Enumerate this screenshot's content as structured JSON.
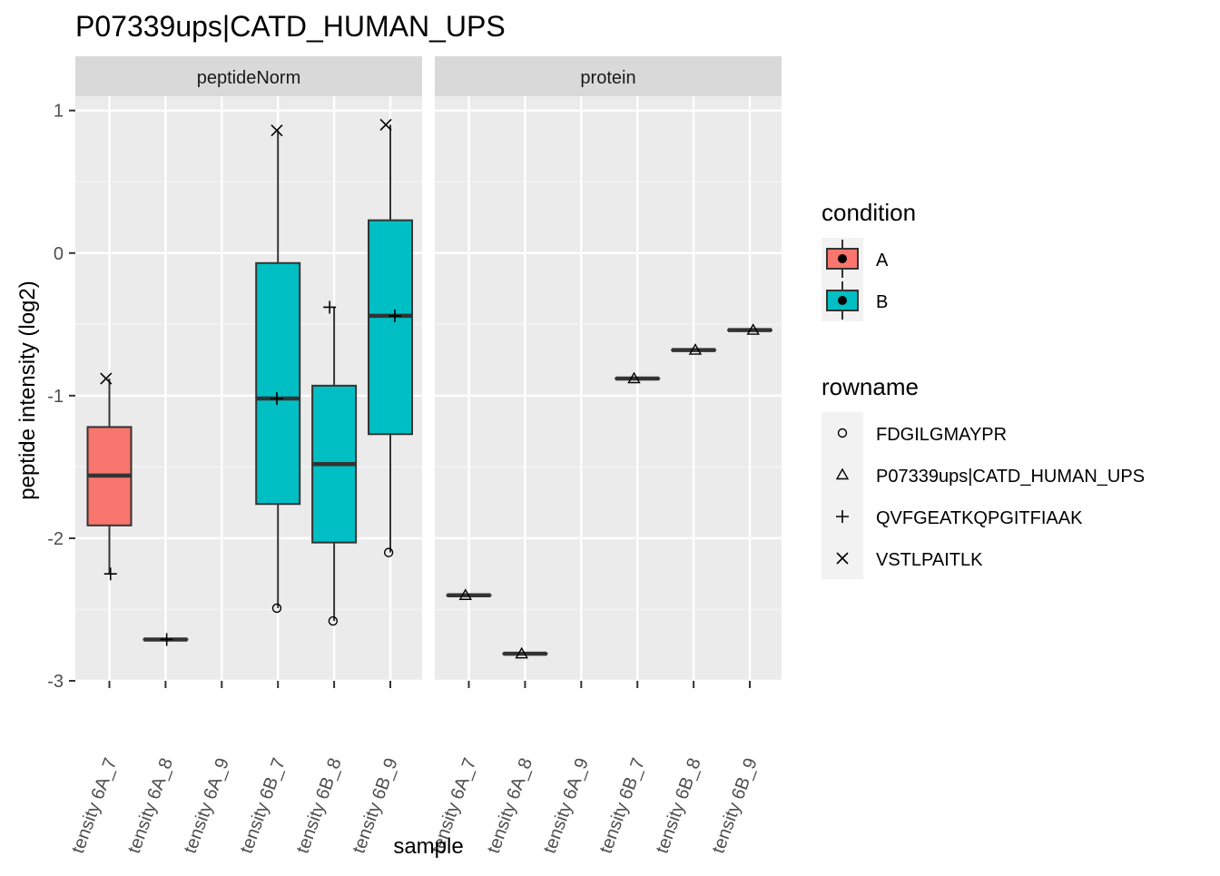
{
  "chart_data": {
    "type": "box",
    "title": "P07339ups|CATD_HUMAN_UPS",
    "xlabel": "sample",
    "ylabel": "peptide intensity (log2)",
    "ylim": [
      -3,
      1.1
    ],
    "yticks": [
      1,
      0,
      -1,
      -2,
      -3
    ],
    "ytick_labels": [
      "1",
      "0",
      "-1",
      "-2",
      "-3"
    ],
    "categories": [
      "tensity 6A_7",
      "tensity 6A_8",
      "tensity 6A_9",
      "tensity 6B_7",
      "tensity 6B_8",
      "tensity 6B_9"
    ],
    "grid": true,
    "legend_position": "right",
    "condition_colors": {
      "A": "#F8766D",
      "B": "#00BFC4"
    },
    "legends": {
      "condition": {
        "title": "condition",
        "entries": [
          {
            "label": "A",
            "color": "#F8766D"
          },
          {
            "label": "B",
            "color": "#00BFC4"
          }
        ]
      },
      "rowname": {
        "title": "rowname",
        "entries": [
          {
            "label": "FDGILGMAYPR",
            "shape": "circle"
          },
          {
            "label": "P07339ups|CATD_HUMAN_UPS",
            "shape": "triangle"
          },
          {
            "label": "QVFGEATKQPGITFIAAK",
            "shape": "plus"
          },
          {
            "label": "VSTLPAITLK",
            "shape": "cross"
          }
        ]
      }
    },
    "panels": [
      {
        "name": "peptideNorm",
        "boxes": [
          {
            "category": 0,
            "condition": "A",
            "min": -2.25,
            "q1": -1.91,
            "median": -1.56,
            "q3": -1.22,
            "max": -0.88
          },
          {
            "category": 1,
            "condition": "A",
            "min": -2.71,
            "q1": -2.71,
            "median": -2.71,
            "q3": -2.71,
            "max": -2.71
          },
          {
            "category": 3,
            "condition": "B",
            "min": -2.49,
            "q1": -1.76,
            "median": -1.02,
            "q3": -0.07,
            "max": 0.86
          },
          {
            "category": 4,
            "condition": "B",
            "min": -2.58,
            "q1": -2.03,
            "median": -1.48,
            "q3": -0.93,
            "max": -0.38
          },
          {
            "category": 5,
            "condition": "B",
            "min": -2.1,
            "q1": -1.27,
            "median": -0.44,
            "q3": 0.23,
            "max": 0.9
          }
        ],
        "points": [
          {
            "category": 0,
            "y": -0.88,
            "shape": "cross",
            "dx": -0.06
          },
          {
            "category": 0,
            "y": -2.25,
            "shape": "plus",
            "dx": 0.02
          },
          {
            "category": 1,
            "y": -2.71,
            "shape": "plus",
            "dx": 0.02
          },
          {
            "category": 3,
            "y": 0.86,
            "shape": "cross",
            "dx": -0.02
          },
          {
            "category": 3,
            "y": -1.02,
            "shape": "plus",
            "dx": -0.02
          },
          {
            "category": 3,
            "y": -2.49,
            "shape": "circle",
            "dx": -0.02
          },
          {
            "category": 4,
            "y": -0.38,
            "shape": "plus",
            "dx": -0.08
          },
          {
            "category": 4,
            "y": -2.58,
            "shape": "circle",
            "dx": -0.02
          },
          {
            "category": 5,
            "y": 0.9,
            "shape": "cross",
            "dx": -0.08
          },
          {
            "category": 5,
            "y": -0.44,
            "shape": "plus",
            "dx": 0.08
          },
          {
            "category": 5,
            "y": -2.1,
            "shape": "circle",
            "dx": -0.03
          }
        ]
      },
      {
        "name": "protein",
        "boxes": [
          {
            "category": 0,
            "condition": "A",
            "min": -2.4,
            "q1": -2.4,
            "median": -2.4,
            "q3": -2.4,
            "max": -2.4
          },
          {
            "category": 1,
            "condition": "A",
            "min": -2.81,
            "q1": -2.81,
            "median": -2.81,
            "q3": -2.81,
            "max": -2.81
          },
          {
            "category": 3,
            "condition": "B",
            "min": -0.88,
            "q1": -0.88,
            "median": -0.88,
            "q3": -0.88,
            "max": -0.88
          },
          {
            "category": 4,
            "condition": "B",
            "min": -0.68,
            "q1": -0.68,
            "median": -0.68,
            "q3": -0.68,
            "max": -0.68
          },
          {
            "category": 5,
            "condition": "B",
            "min": -0.54,
            "q1": -0.54,
            "median": -0.54,
            "q3": -0.54,
            "max": -0.54
          }
        ],
        "points": [
          {
            "category": 0,
            "y": -2.4,
            "shape": "triangle",
            "dx": -0.06
          },
          {
            "category": 1,
            "y": -2.81,
            "shape": "triangle",
            "dx": -0.06
          },
          {
            "category": 3,
            "y": -0.88,
            "shape": "triangle",
            "dx": -0.06
          },
          {
            "category": 4,
            "y": -0.68,
            "shape": "triangle",
            "dx": 0.03
          },
          {
            "category": 5,
            "y": -0.54,
            "shape": "triangle",
            "dx": 0.06
          }
        ]
      }
    ]
  }
}
